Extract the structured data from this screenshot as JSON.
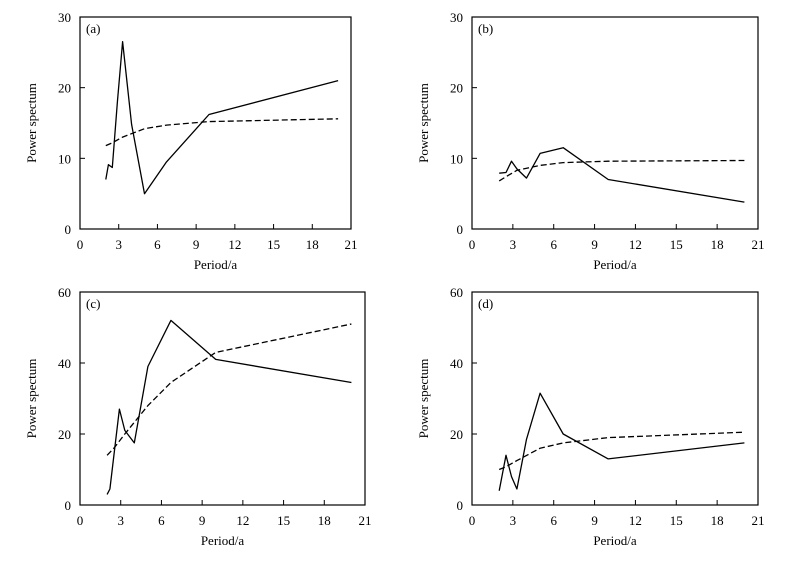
{
  "chart_data": [
    {
      "panel": "(a)",
      "type": "line",
      "xlabel": "Period/a",
      "ylabel": "Power spectum",
      "xlim": [
        0,
        21
      ],
      "ylim": [
        0,
        30
      ],
      "xticks": [
        0,
        3,
        6,
        9,
        12,
        15,
        18,
        21
      ],
      "yticks": [
        0,
        10,
        20,
        30
      ],
      "series": [
        {
          "style": "solid",
          "x": [
            2.0,
            2.2,
            2.5,
            2.9,
            3.3,
            4.0,
            5.0,
            6.7,
            10.0,
            20.0
          ],
          "y": [
            7.0,
            9.1,
            8.7,
            18.0,
            26.5,
            14.8,
            5.0,
            9.5,
            16.2,
            21.0
          ]
        },
        {
          "style": "dashed",
          "x": [
            2.0,
            2.5,
            3.3,
            5.0,
            6.7,
            10.0,
            20.0
          ],
          "y": [
            11.8,
            12.2,
            13.0,
            14.2,
            14.7,
            15.2,
            15.6
          ]
        }
      ]
    },
    {
      "panel": "(b)",
      "type": "line",
      "xlabel": "Period/a",
      "ylabel": "Power spectum",
      "xlim": [
        0,
        21
      ],
      "ylim": [
        0,
        30
      ],
      "xticks": [
        0,
        3,
        6,
        9,
        12,
        15,
        18,
        21
      ],
      "yticks": [
        0,
        10,
        20,
        30
      ],
      "series": [
        {
          "style": "solid",
          "x": [
            2.0,
            2.5,
            2.9,
            3.3,
            4.0,
            5.0,
            6.7,
            10.0,
            20.0
          ],
          "y": [
            7.9,
            8.0,
            9.6,
            8.5,
            7.2,
            10.7,
            11.5,
            7.0,
            3.8
          ]
        },
        {
          "style": "dashed",
          "x": [
            2.0,
            2.5,
            3.3,
            5.0,
            6.7,
            10.0,
            20.0
          ],
          "y": [
            6.8,
            7.4,
            8.3,
            9.0,
            9.4,
            9.6,
            9.7
          ]
        }
      ]
    },
    {
      "panel": "(c)",
      "type": "line",
      "xlabel": "Period/a",
      "ylabel": "Power spectum",
      "xlim": [
        0,
        21
      ],
      "ylim": [
        0,
        60
      ],
      "xticks": [
        0,
        3,
        6,
        9,
        12,
        15,
        18,
        21
      ],
      "yticks": [
        0,
        20,
        40,
        60
      ],
      "series": [
        {
          "style": "solid",
          "x": [
            2.0,
            2.2,
            2.9,
            3.3,
            4.0,
            5.0,
            6.7,
            10.0,
            20.0
          ],
          "y": [
            3.0,
            4.5,
            27.0,
            21.0,
            17.5,
            39.0,
            52.0,
            41.0,
            34.5
          ]
        },
        {
          "style": "dashed",
          "x": [
            2.0,
            2.5,
            3.3,
            5.0,
            6.7,
            10.0,
            20.0
          ],
          "y": [
            14.0,
            16.0,
            20.0,
            28.0,
            34.5,
            43.0,
            51.0
          ]
        }
      ]
    },
    {
      "panel": "(d)",
      "type": "line",
      "xlabel": "Period/a",
      "ylabel": "Power spectum",
      "xlim": [
        0,
        21
      ],
      "ylim": [
        0,
        60
      ],
      "xticks": [
        0,
        3,
        6,
        9,
        12,
        15,
        18,
        21
      ],
      "yticks": [
        0,
        20,
        40,
        60
      ],
      "series": [
        {
          "style": "solid",
          "x": [
            2.0,
            2.5,
            2.9,
            3.3,
            4.0,
            5.0,
            6.7,
            10.0,
            20.0
          ],
          "y": [
            4.0,
            14.0,
            8.0,
            4.5,
            18.5,
            31.5,
            20.0,
            13.0,
            17.5
          ]
        },
        {
          "style": "dashed",
          "x": [
            2.0,
            2.5,
            3.3,
            5.0,
            6.7,
            10.0,
            20.0
          ],
          "y": [
            10.0,
            10.8,
            12.5,
            16.0,
            17.5,
            19.0,
            20.5
          ]
        }
      ]
    }
  ]
}
